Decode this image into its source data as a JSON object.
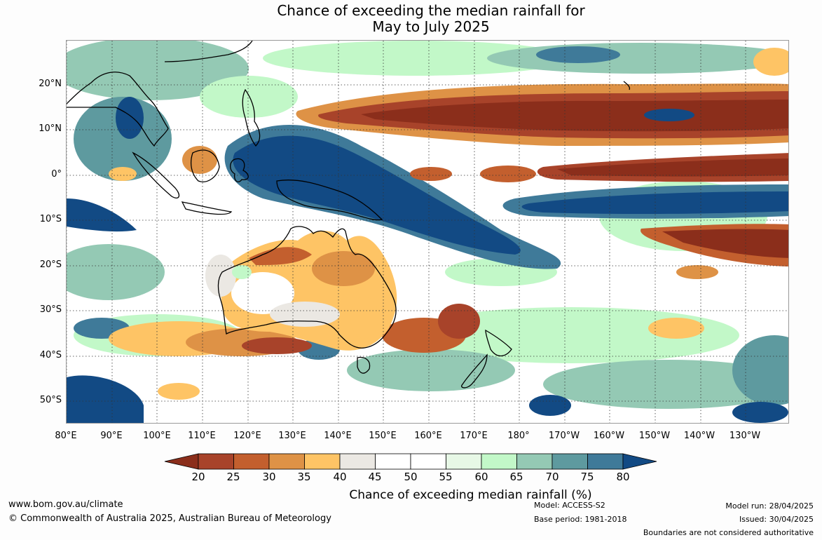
{
  "title": {
    "line1": "Chance of exceeding the median rainfall for",
    "line2": "May to July 2025"
  },
  "map": {
    "lat_labels": [
      "20°N",
      "10°N",
      "0°",
      "10°S",
      "20°S",
      "30°S",
      "40°S",
      "50°S"
    ],
    "lon_labels": [
      "80°E",
      "90°E",
      "100°E",
      "110°E",
      "120°E",
      "130°E",
      "140°E",
      "150°E",
      "160°E",
      "170°E",
      "180°",
      "170°W",
      "160°W",
      "150°W",
      "140°W",
      "130°W"
    ]
  },
  "legend": {
    "ticks": [
      "20",
      "25",
      "30",
      "35",
      "40",
      "45",
      "50",
      "55",
      "60",
      "65",
      "70",
      "75",
      "80"
    ],
    "colors": [
      "#8b2e1b",
      "#a8432a",
      "#c35f2e",
      "#de9246",
      "#fec465",
      "#ebe8e3",
      "#ffffff",
      "#ffffff",
      "#e7f8e6",
      "#c2f8c8",
      "#94c9b4",
      "#5e9a9f",
      "#3f7a99",
      "#124a84"
    ],
    "label": "Chance of exceeding median rainfall (%)"
  },
  "footer": {
    "website": "www.bom.gov.au/climate",
    "copyright": "© Commonwealth of Australia 2025, Australian Bureau of Meteorology",
    "model": "Model: ACCESS-S2",
    "base_period": "Base period: 1981-2018",
    "model_run": "Model run: 28/04/2025",
    "issued": "Issued: 30/04/2025",
    "disclaimer": "Boundaries are not considered authoritative"
  }
}
